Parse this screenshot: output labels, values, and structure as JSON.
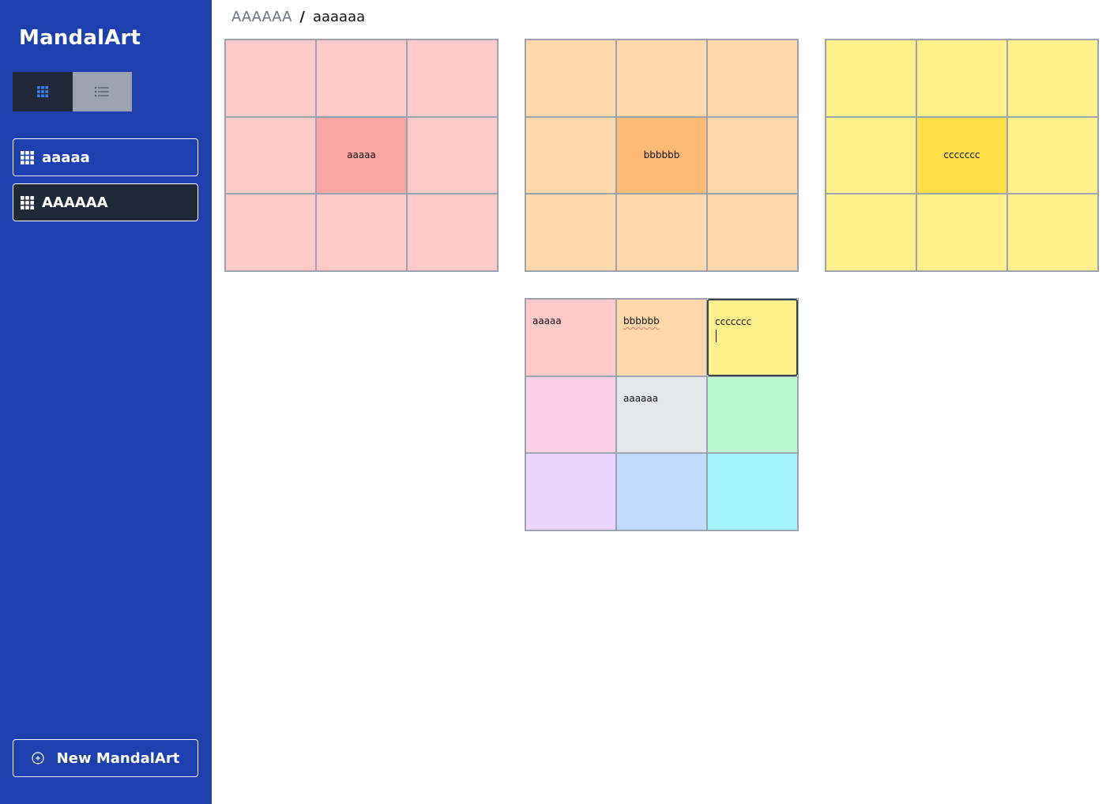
{
  "app": {
    "title": "MandalArt"
  },
  "view_toggle": {
    "grid_icon": "grid-icon",
    "list_icon": "list-icon",
    "active": "grid"
  },
  "sidebar": {
    "items": [
      {
        "label": "aaaaa",
        "icon": "grid-icon",
        "active": false
      },
      {
        "label": "AAAAAA",
        "icon": "grid-icon",
        "active": true
      }
    ],
    "new_button": {
      "label": "New MandalArt",
      "icon": "plus-circle-icon"
    }
  },
  "breadcrumb": {
    "parent": "AAAAAA",
    "separator": "/",
    "current": "aaaaaa"
  },
  "colors": {
    "sidebar": "#1e40af",
    "dark": "#1f2937",
    "red_light": "#fecaca",
    "red_center": "#fca5a5",
    "orange_light": "#fed7aa",
    "orange_center": "#fdba74",
    "yellow_light": "#fef08a",
    "yellow_center": "#fde047"
  },
  "grids": {
    "red": {
      "center": "aaaaa"
    },
    "orange": {
      "center": "bbbbbb"
    },
    "yellow": {
      "center": "ccccccc"
    },
    "main": {
      "cells": [
        "aaaaa",
        "bbbbbb",
        "ccccccc",
        "",
        "aaaaaa",
        "",
        "",
        "",
        ""
      ]
    }
  }
}
